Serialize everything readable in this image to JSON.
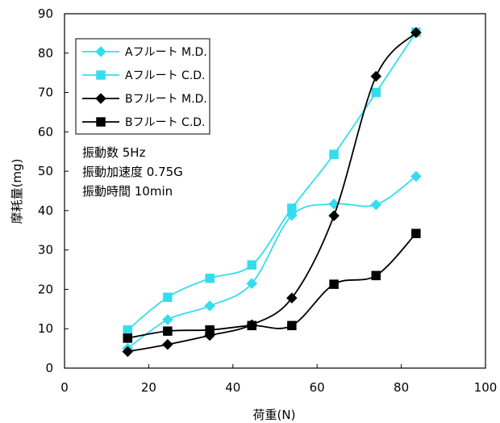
{
  "chart_data": {
    "type": "line",
    "title": "",
    "xlabel": "荷重(N)",
    "ylabel": "摩耗量(mg)",
    "xlim": [
      0,
      100
    ],
    "ylim": [
      0,
      90
    ],
    "xticks": [
      0,
      20,
      40,
      60,
      80,
      100
    ],
    "yticks": [
      0,
      10,
      20,
      30,
      40,
      50,
      60,
      70,
      80,
      90
    ],
    "grid": false,
    "legend_position": "top-left",
    "annotations": [
      "振動数 5Hz",
      "振動加速度 0.75G",
      "振動時間 10min"
    ],
    "series": [
      {
        "name": "Aフルート M.D.",
        "color": "#33ddee",
        "marker": "diamond",
        "points": [
          [
            15,
            5
          ],
          [
            24.5,
            12.3
          ],
          [
            34.5,
            15.8
          ],
          [
            44.5,
            21.5
          ],
          [
            54,
            38.8
          ],
          [
            64,
            41.7
          ],
          [
            74,
            41.5
          ],
          [
            83.5,
            48.7
          ]
        ]
      },
      {
        "name": "Aフルート C.D.",
        "color": "#33ddee",
        "marker": "square",
        "points": [
          [
            15,
            9.7
          ],
          [
            24.5,
            18
          ],
          [
            34.5,
            22.8
          ],
          [
            44.5,
            26.2
          ],
          [
            54,
            40.6
          ],
          [
            64,
            54.3
          ],
          [
            74,
            70
          ],
          [
            83.5,
            85.3
          ]
        ]
      },
      {
        "name": "Bフルート M.D.",
        "color": "#000000",
        "marker": "diamond",
        "points": [
          [
            15,
            4.2
          ],
          [
            24.5,
            6
          ],
          [
            34.5,
            8.3
          ],
          [
            44.5,
            11
          ],
          [
            54,
            17.8
          ],
          [
            64,
            38.7
          ],
          [
            74,
            74.1
          ],
          [
            83.5,
            85.2
          ]
        ]
      },
      {
        "name": "Bフルート C.D.",
        "color": "#000000",
        "marker": "square",
        "points": [
          [
            15,
            7.6
          ],
          [
            24.5,
            9.4
          ],
          [
            34.5,
            9.7
          ],
          [
            44.5,
            10.8
          ],
          [
            54,
            10.8
          ],
          [
            64,
            21.3
          ],
          [
            74,
            23.5
          ],
          [
            83.5,
            34.2
          ]
        ]
      }
    ]
  }
}
